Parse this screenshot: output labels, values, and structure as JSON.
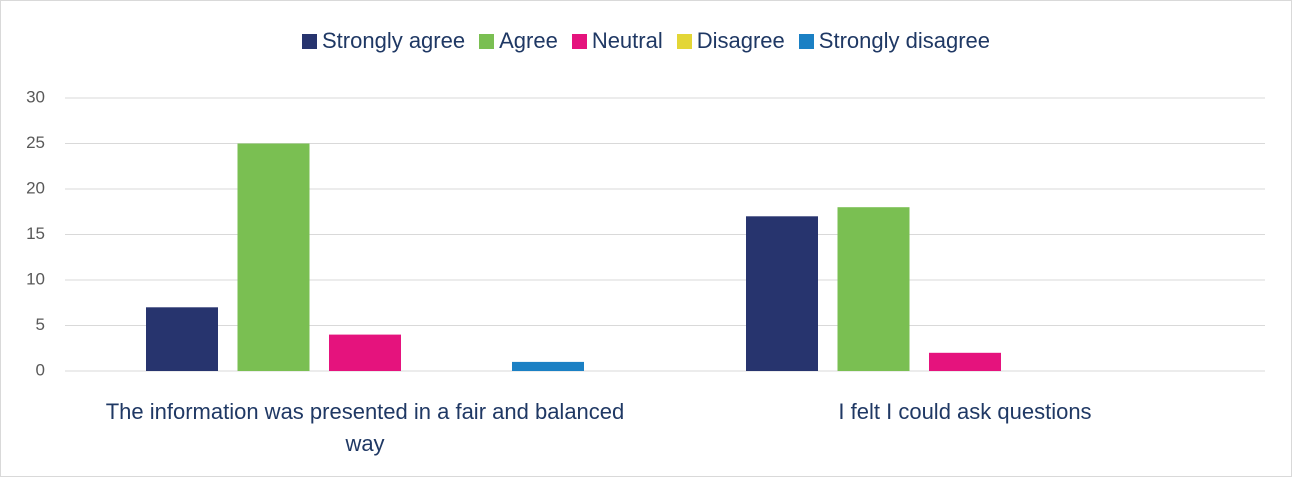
{
  "chart_data": {
    "type": "bar",
    "categories": [
      "The information was presented in a fair and balanced way",
      "I felt I could ask questions"
    ],
    "series": [
      {
        "name": "Strongly agree",
        "color": "#27346e",
        "values": [
          7,
          17
        ]
      },
      {
        "name": "Agree",
        "color": "#7abf52",
        "values": [
          25,
          18
        ]
      },
      {
        "name": "Neutral",
        "color": "#e5137d",
        "values": [
          4,
          2
        ]
      },
      {
        "name": "Disagree",
        "color": "#e3d636",
        "values": [
          0,
          0
        ]
      },
      {
        "name": "Strongly disagree",
        "color": "#1b80c4",
        "values": [
          1,
          0
        ]
      }
    ],
    "ylim": [
      0,
      30
    ],
    "yticks": [
      0,
      5,
      10,
      15,
      20,
      25,
      30
    ],
    "grid": true,
    "legend": "top"
  }
}
